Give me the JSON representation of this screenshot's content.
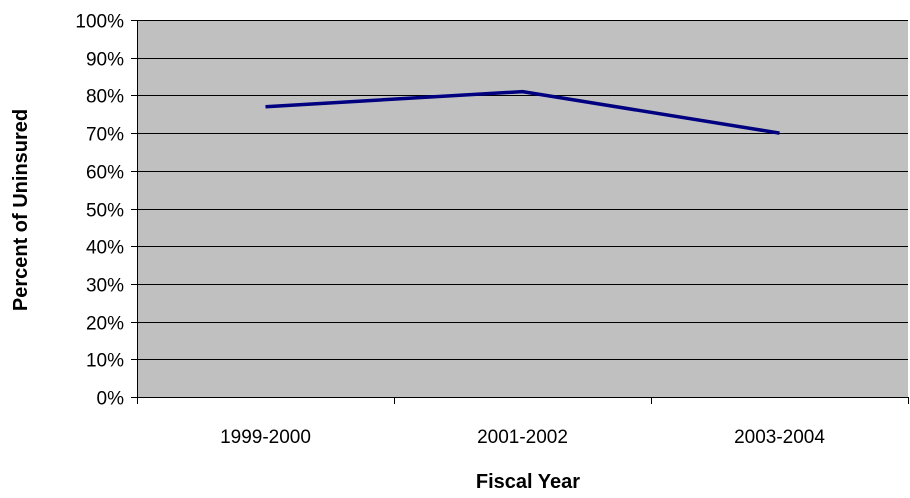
{
  "chart_data": {
    "type": "line",
    "title": "",
    "xlabel": "Fiscal Year",
    "ylabel": "Percent of Uninsured",
    "categories": [
      "1999-2000",
      "2001-2002",
      "2003-2004"
    ],
    "series": [
      {
        "values": [
          77,
          81,
          70
        ]
      }
    ],
    "ylim": [
      0,
      100
    ],
    "ytick_values": [
      0,
      10,
      20,
      30,
      40,
      50,
      60,
      70,
      80,
      90,
      100
    ],
    "ytick_labels": [
      "0%",
      "10%",
      "20%",
      "30%",
      "40%",
      "50%",
      "60%",
      "70%",
      "80%",
      "90%",
      "100%"
    ],
    "grid": true,
    "legend": "none",
    "colors": {
      "plot_background": "#c0c0c0",
      "gridline": "#000000",
      "line": "#000080"
    }
  }
}
